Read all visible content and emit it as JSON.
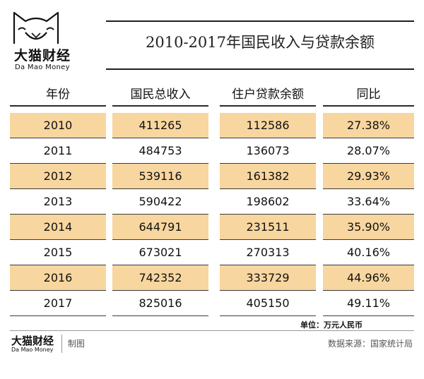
{
  "brand": {
    "name_cn": "大猫财经",
    "name_en": "Da Mao Money"
  },
  "title": "2010-2017年国民收入与贷款余额",
  "table": {
    "headers": [
      "年份",
      "国民总收入",
      "住户贷款余额",
      "同比"
    ],
    "rows": [
      [
        "2010",
        "411265",
        "112586",
        "27.38%"
      ],
      [
        "2011",
        "484753",
        "136073",
        "28.07%"
      ],
      [
        "2012",
        "539116",
        "161382",
        "29.93%"
      ],
      [
        "2013",
        "590422",
        "198602",
        "33.64%"
      ],
      [
        "2014",
        "644791",
        "231511",
        "35.90%"
      ],
      [
        "2015",
        "673021",
        "270313",
        "40.16%"
      ],
      [
        "2016",
        "742352",
        "333729",
        "44.96%"
      ],
      [
        "2017",
        "825016",
        "405150",
        "49.11%"
      ]
    ],
    "highlight_color": "#f8d69f"
  },
  "unit": "单位：万元人民币",
  "footer": {
    "brand_cn": "大猫财经",
    "brand_en": "Da Mao Money",
    "made": "制图",
    "source": "数据来源：国家统计局"
  }
}
